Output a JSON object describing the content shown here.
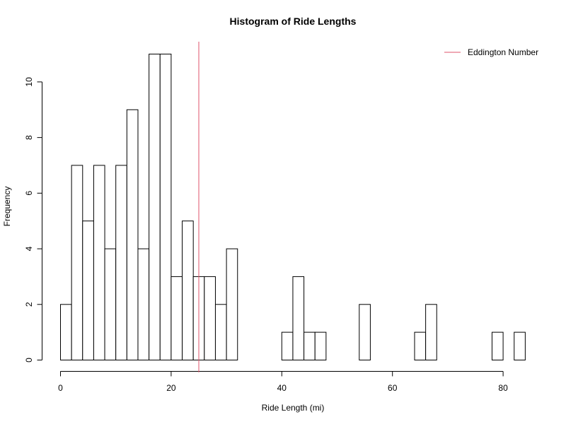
{
  "chart_data": {
    "type": "bar",
    "title": "Histogram of Ride Lengths",
    "xlabel": "Ride Length (mi)",
    "ylabel": "Frequency",
    "bin_width": 2,
    "x_start": 0,
    "counts": [
      2,
      7,
      5,
      7,
      4,
      7,
      9,
      4,
      11,
      11,
      3,
      5,
      3,
      3,
      2,
      4,
      0,
      0,
      0,
      0,
      1,
      3,
      1,
      1,
      0,
      0,
      0,
      2,
      0,
      0,
      0,
      0,
      1,
      2,
      0,
      0,
      0,
      0,
      0,
      1,
      0,
      1
    ],
    "xlim": [
      0,
      84
    ],
    "ylim": [
      0,
      11
    ],
    "x_ticks": [
      0,
      20,
      40,
      60,
      80
    ],
    "y_ticks": [
      0,
      2,
      4,
      6,
      8,
      10
    ],
    "reference_line": {
      "name": "Eddington Number",
      "x": 25,
      "color": "#DF536B"
    },
    "legend": {
      "position": "top-right",
      "entries": [
        {
          "name": "Eddington Number",
          "color": "#DF536B"
        }
      ]
    },
    "bar_fill": "#ffffff",
    "bar_stroke": "#000000"
  }
}
